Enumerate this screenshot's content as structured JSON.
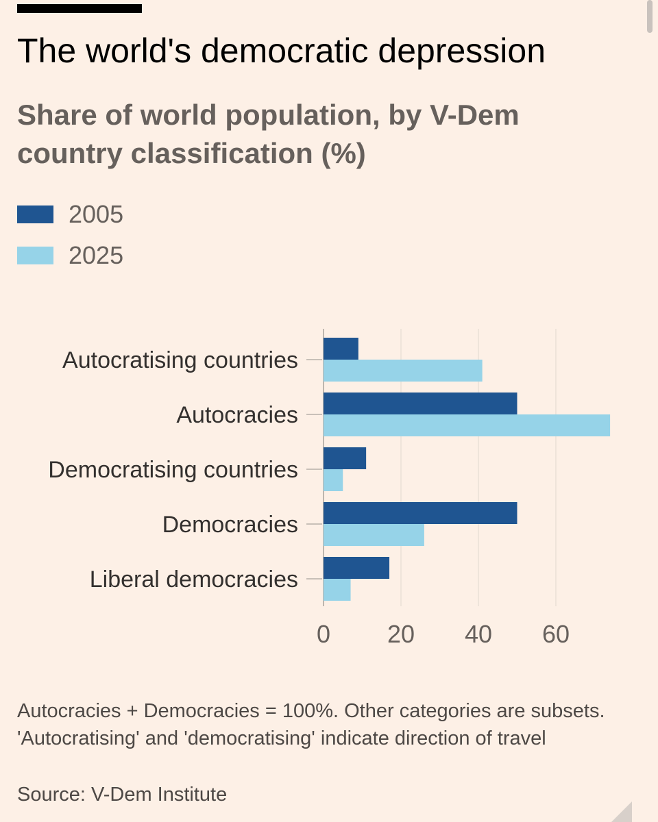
{
  "header": {
    "title": "The world's democratic depression",
    "subtitle": "Share of world population, by V-Dem country classification (%)"
  },
  "legend": [
    {
      "label": "2005",
      "color": "#1f5591"
    },
    {
      "label": "2025",
      "color": "#96d3e8"
    }
  ],
  "chart_data": {
    "type": "bar",
    "orientation": "horizontal",
    "title": "The world's democratic depression",
    "subtitle": "Share of world population, by V-Dem country classification (%)",
    "categories": [
      "Autocratising countries",
      "Autocracies",
      "Democratising countries",
      "Democracies",
      "Liberal democracies"
    ],
    "series": [
      {
        "name": "2005",
        "color": "#1f5591",
        "values": [
          9,
          50,
          11,
          50,
          17
        ]
      },
      {
        "name": "2025",
        "color": "#96d3e8",
        "values": [
          41,
          74,
          5,
          26,
          7
        ]
      }
    ],
    "xticks": [
      0,
      20,
      40,
      60
    ],
    "xlim": [
      0,
      74
    ],
    "grid": true,
    "legend_position": "top-left"
  },
  "footer": {
    "note": "Autocracies + Democracies = 100%. Other categories are subsets. 'Autocratising' and 'democratising' indicate direction of travel",
    "source": "Source: V-Dem Institute"
  }
}
